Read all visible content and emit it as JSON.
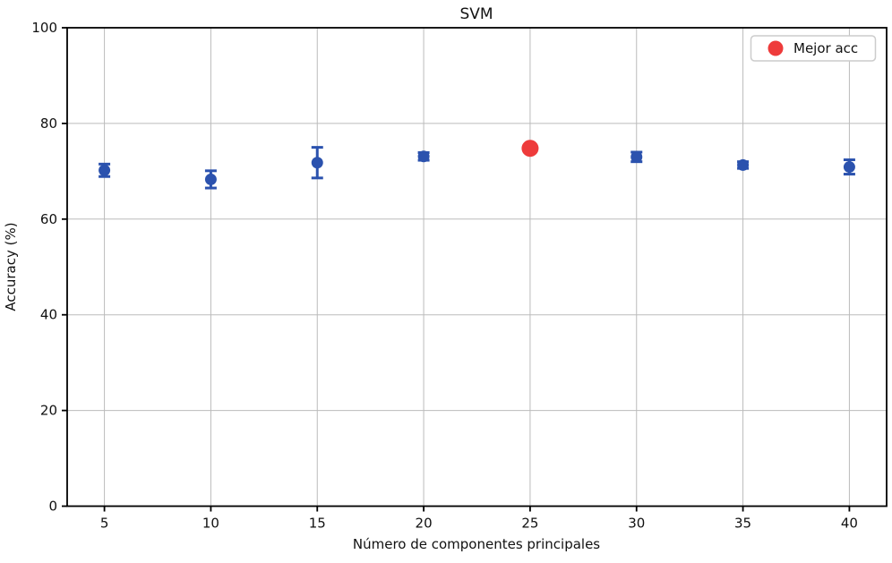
{
  "figure": {
    "title": "SVM",
    "xlabel": "Número de componentes principales",
    "ylabel": "Accuracy (%)"
  },
  "legend": {
    "label": "Mejor acc",
    "marker": "red-dot-icon"
  },
  "colors": {
    "point_blue": "#2b52ae",
    "best_red": "#ee3b3b",
    "grid": "#bbbbbb",
    "spine": "#000000",
    "legend_border": "#cccccc",
    "background": "#ffffff"
  },
  "chart_data": {
    "type": "scatter",
    "title": "SVM",
    "xlabel": "Número de componentes principales",
    "ylabel": "Accuracy (%)",
    "x": [
      5,
      10,
      15,
      20,
      25,
      30,
      35,
      40
    ],
    "series": [
      {
        "name": "accuracy",
        "values": [
          70.2,
          68.3,
          71.8,
          73.1,
          74.8,
          73.0,
          71.3,
          70.9
        ],
        "yerr": [
          1.3,
          1.8,
          3.2,
          0.8,
          0.8,
          1.0,
          0.7,
          1.5
        ],
        "color": "#2b52ae",
        "marker": "circle"
      }
    ],
    "best_point": {
      "x": 25,
      "y": 74.8,
      "color": "#ee3b3b",
      "legend_label": "Mejor acc"
    },
    "xlim": [
      3.25,
      41.75
    ],
    "ylim": [
      0,
      100
    ],
    "xticks": [
      5,
      10,
      15,
      20,
      25,
      30,
      35,
      40
    ],
    "yticks": [
      0,
      20,
      40,
      60,
      80,
      100
    ],
    "grid": true,
    "legend_position": "upper right"
  }
}
